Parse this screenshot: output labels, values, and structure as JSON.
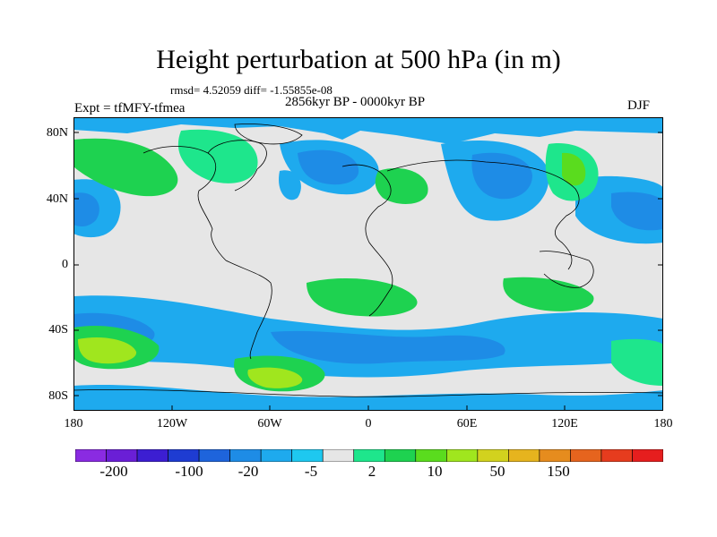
{
  "title": "Height perturbation at 500 hPa (in m)",
  "stats": "rmsd= 4.52059 diff= -1.55855e-08",
  "period": "2856kyr BP - 0000kyr BP",
  "experiment": "Expt = tfMFY-tfmea",
  "season": "DJF",
  "map": {
    "lat_labels": [
      "80N",
      "40N",
      "0",
      "40S",
      "80S"
    ],
    "lon_labels": [
      "180",
      "120W",
      "60W",
      "0",
      "60E",
      "120E",
      "180"
    ],
    "background_color": "#e6e6e6"
  },
  "colorbar": {
    "colors": [
      "#8a2be2",
      "#6a1fd6",
      "#3c1ed2",
      "#1e3cd2",
      "#1e64dc",
      "#1e8ce6",
      "#1eaaee",
      "#1ec8f0",
      "#e6e6e6",
      "#1ee68c",
      "#1ed250",
      "#5adc1e",
      "#a0e61e",
      "#d2d21e",
      "#e6b41e",
      "#e68c1e",
      "#e6641e",
      "#e63c1e",
      "#e61e1e"
    ],
    "labels": [
      "-200",
      "-100",
      "-20",
      "-5",
      "2",
      "10",
      "50",
      "150"
    ]
  }
}
